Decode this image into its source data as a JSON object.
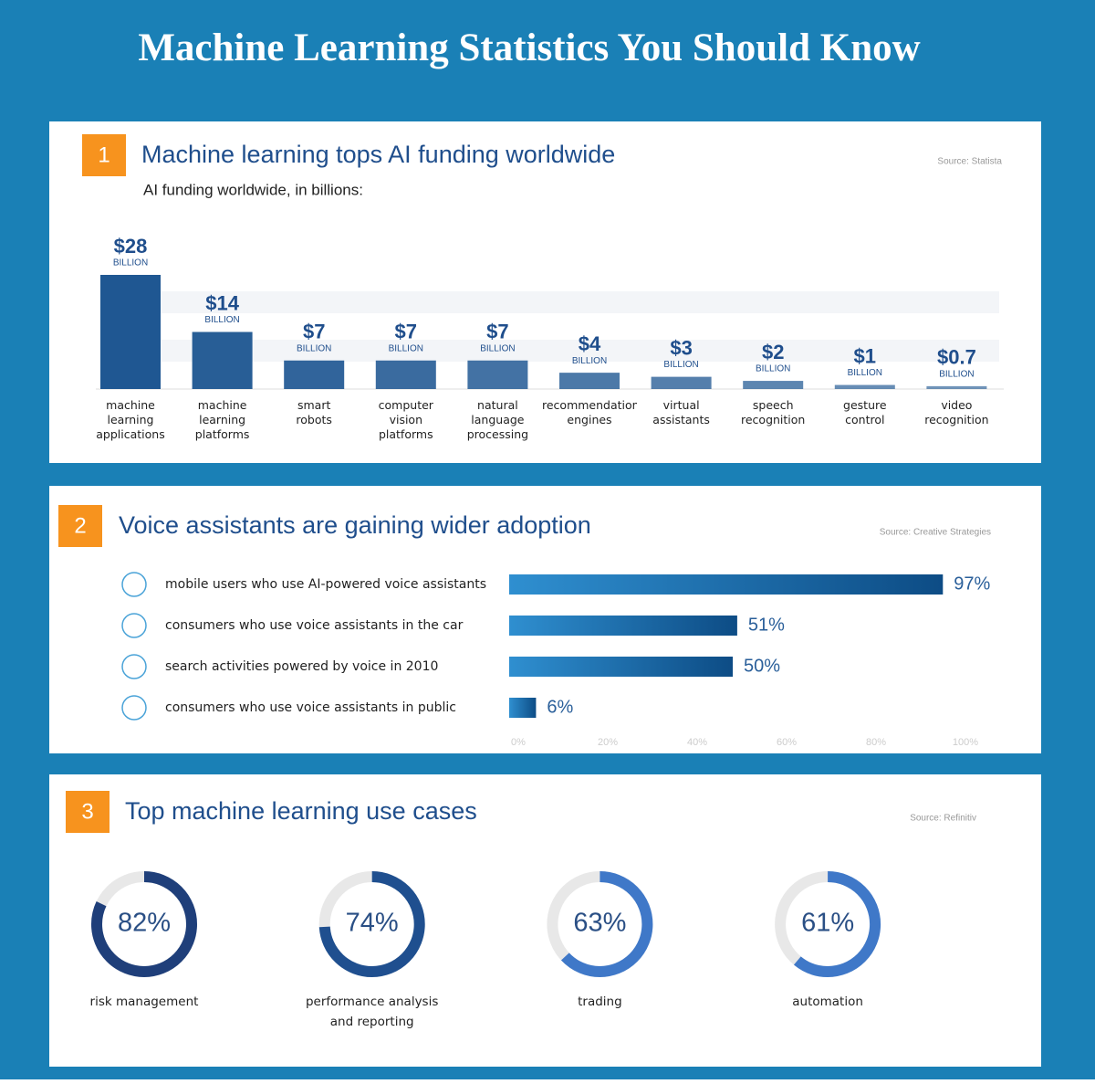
{
  "title": "Machine Learning Statistics You Should Know",
  "chart_data": [
    {
      "type": "bar",
      "number": "1",
      "title": "Machine learning tops AI funding worldwide",
      "subtitle": "AI funding worldwide, in billions:",
      "source": "Source: Statista",
      "categories": [
        "machine learning applications",
        "machine learning platforms",
        "smart robots",
        "computer vision platforms",
        "natural language processing",
        "recommendation engines",
        "virtual assistants",
        "speech recognition",
        "gesture control",
        "video recognition"
      ],
      "values": [
        28,
        14,
        7,
        7,
        7,
        4,
        3,
        2,
        1,
        0.7
      ],
      "value_labels": [
        "$28",
        "$14",
        "$7",
        "$7",
        "$7",
        "$4",
        "$3",
        "$2",
        "$1",
        "$0.7"
      ],
      "value_unit": "BILLION",
      "color": "#1f5792"
    },
    {
      "type": "hbar",
      "number": "2",
      "title": "Voice assistants are gaining wider adoption",
      "source": "Source: Creative Strategies",
      "categories": [
        "mobile users who use AI-powered voice assistants",
        "consumers who use voice assistants in the car",
        "search activities powered by voice in 2010",
        "consumers who use voice assistants in public"
      ],
      "values": [
        97,
        51,
        50,
        6
      ],
      "value_labels": [
        "97%",
        "51%",
        "50%",
        "6%"
      ],
      "xlim": [
        0,
        100
      ],
      "xticks": [
        {
          "value": 0,
          "label": "0%"
        },
        {
          "value": 20,
          "label": "20%"
        },
        {
          "value": 40,
          "label": "40%"
        },
        {
          "value": 60,
          "label": "60%"
        },
        {
          "value": 80,
          "label": "80%"
        },
        {
          "value": 100,
          "label": "100%"
        }
      ],
      "color": "#0d4c85"
    },
    {
      "type": "donut",
      "number": "3",
      "title": "Top machine learning use cases",
      "source": "Source: Refinitiv",
      "categories": [
        "risk management",
        "performance analysis and reporting",
        "trading",
        "automation"
      ],
      "values": [
        82,
        74,
        63,
        61
      ],
      "value_labels": [
        "82%",
        "74%",
        "63%",
        "61%"
      ],
      "colors": [
        "#1f3f7a",
        "#1f4f8f",
        "#3f78c8",
        "#3f78c8"
      ]
    }
  ]
}
